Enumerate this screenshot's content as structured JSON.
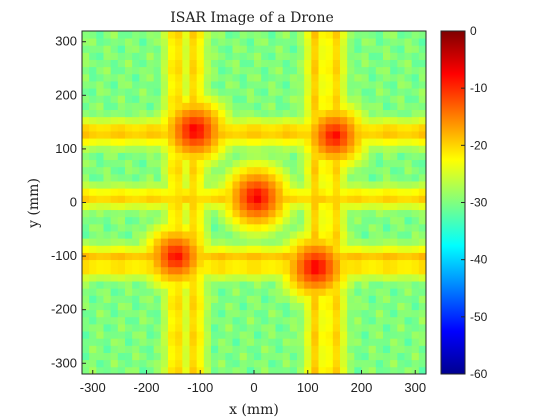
{
  "chart_data": {
    "type": "heatmap",
    "title": "ISAR Image of a Drone",
    "xlabel": "x (mm)",
    "ylabel": "y (mm)",
    "xlim": [
      -320,
      320
    ],
    "ylim": [
      -320,
      320
    ],
    "xticks": [
      -300,
      -200,
      -100,
      0,
      100,
      200,
      300
    ],
    "yticks": [
      -300,
      -200,
      -100,
      0,
      100,
      200,
      300
    ],
    "xtick_labels": [
      "-300",
      "-200",
      "-100",
      "0",
      "100",
      "200",
      "300"
    ],
    "ytick_labels": [
      "-300",
      "-200",
      "-100",
      "0",
      "100",
      "200",
      "300"
    ],
    "colorbar": {
      "range": [
        -60,
        0
      ],
      "ticks": [
        0,
        -10,
        -20,
        -30,
        -40,
        -50,
        -60
      ],
      "tick_labels": [
        "0",
        "-10",
        "-20",
        "-30",
        "-40",
        "-50",
        "-60"
      ],
      "colormap": "jet"
    },
    "background_level_db": -30,
    "grid": false,
    "scatterers": [
      {
        "x": -110,
        "y": 135,
        "peak_db": -6
      },
      {
        "x": 150,
        "y": 125,
        "peak_db": -7
      },
      {
        "x": -145,
        "y": -100,
        "peak_db": -7
      },
      {
        "x": 115,
        "y": -120,
        "peak_db": -6
      },
      {
        "x": 5,
        "y": 10,
        "peak_db": -6
      }
    ],
    "sidelobe_lines": {
      "horizontal_y": [
        135,
        125,
        10,
        -100,
        -120
      ],
      "vertical_x": [
        -145,
        -110,
        115,
        150
      ]
    }
  }
}
